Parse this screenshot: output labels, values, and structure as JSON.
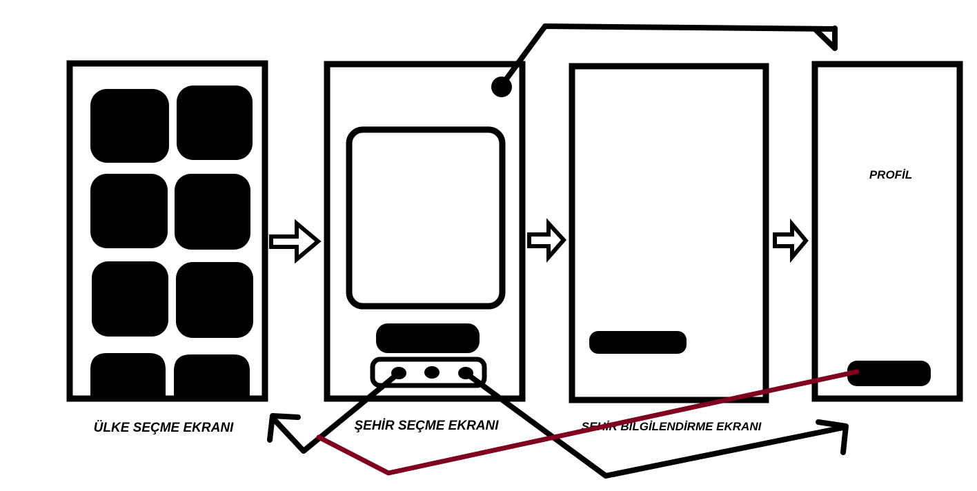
{
  "colors": {
    "ink": "#000000",
    "background": "#ffffff",
    "accent_line": "#800020"
  },
  "screens": [
    {
      "id": "country-select",
      "label": "ÜLKE SEÇME EKRANI"
    },
    {
      "id": "city-select",
      "label": "ŞEHİR SEÇME EKRANI"
    },
    {
      "id": "city-info",
      "label": "ŞEHİR BİLGİLENDİRME EKRANI"
    },
    {
      "id": "profile",
      "label": "PROFİL"
    }
  ],
  "icons": {
    "flow_arrow": "hollow-right-arrow-icon",
    "nav_arrow": "open-arrowhead-icon"
  }
}
